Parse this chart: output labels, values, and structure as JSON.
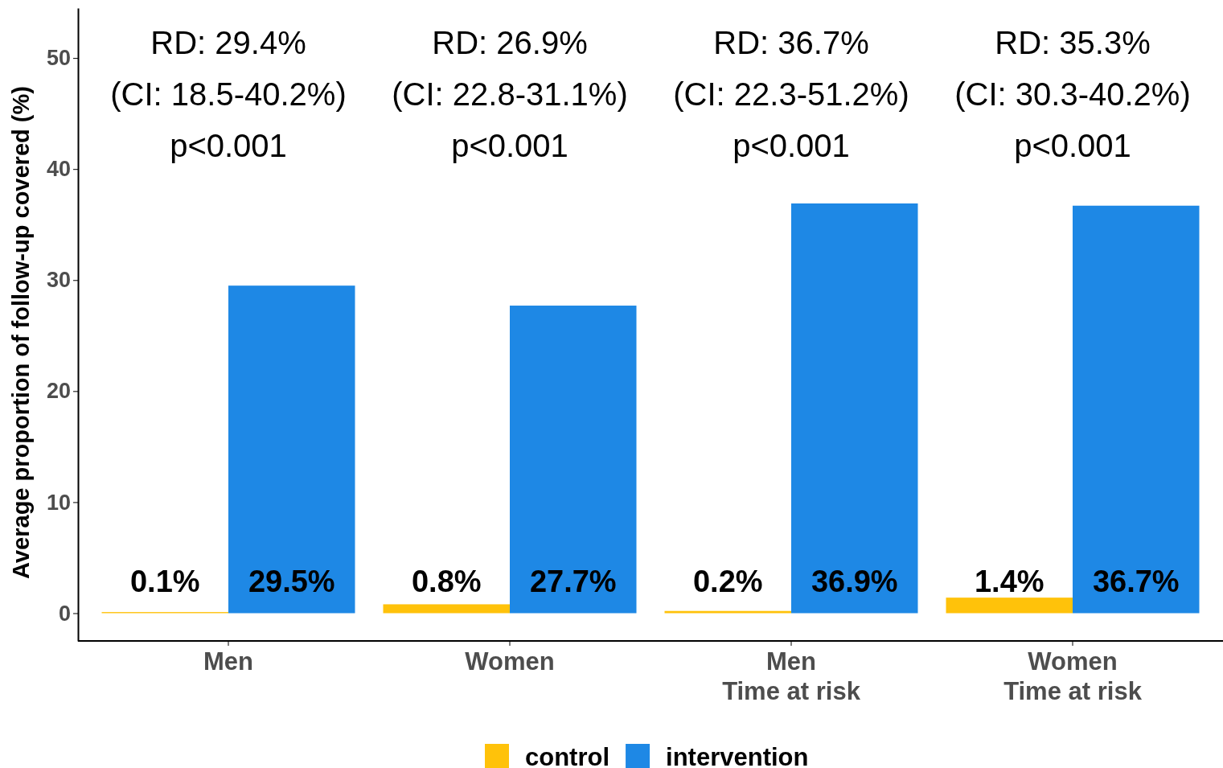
{
  "chart_data": {
    "type": "bar",
    "ylabel": "Average proportion of follow-up covered (%)",
    "categories": [
      "Men",
      "Women",
      "Men\nTime at risk",
      "Women\nTime at risk"
    ],
    "series": [
      {
        "name": "control",
        "color": "#ffc20a",
        "values": [
          0.1,
          0.8,
          0.2,
          1.4
        ],
        "value_labels": [
          "0.1%",
          "0.8%",
          "0.2%",
          "1.4%"
        ]
      },
      {
        "name": "intervention",
        "color": "#1e88e5",
        "values": [
          29.5,
          27.7,
          36.9,
          36.7
        ],
        "value_labels": [
          "29.5%",
          "27.7%",
          "36.9%",
          "36.7%"
        ]
      }
    ],
    "annotations": [
      "RD: 29.4%\n(CI: 18.5-40.2%)\np<0.001",
      "RD: 26.9%\n(CI: 22.8-31.1%)\np<0.001",
      "RD: 36.7%\n(CI: 22.3-51.2%)\np<0.001",
      "RD: 35.3%\n(CI: 30.3-40.2%)\np<0.001"
    ],
    "ylim": [
      -2.5,
      54.5
    ],
    "yticks": [
      0,
      10,
      20,
      30,
      40,
      50
    ],
    "legend": "bottom"
  }
}
